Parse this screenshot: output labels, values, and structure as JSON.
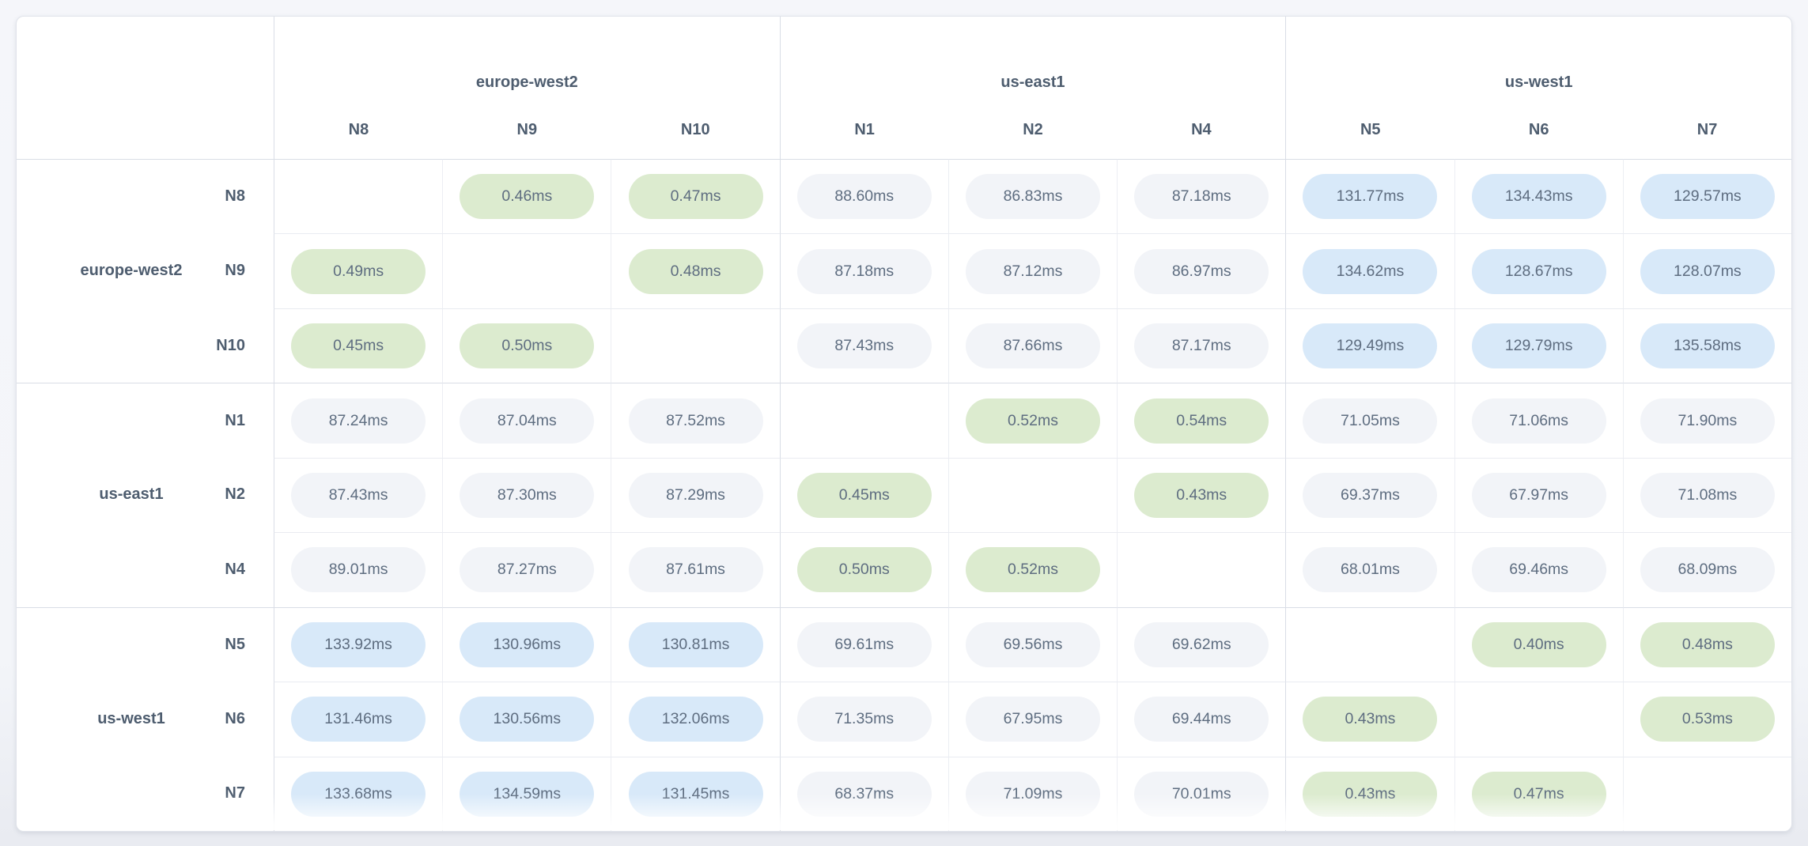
{
  "chart_data": {
    "type": "heatmap",
    "unit": "ms",
    "col_groups": [
      {
        "region": "europe-west2",
        "nodes": [
          "N8",
          "N9",
          "N10"
        ]
      },
      {
        "region": "us-east1",
        "nodes": [
          "N1",
          "N2",
          "N4"
        ]
      },
      {
        "region": "us-west1",
        "nodes": [
          "N5",
          "N6",
          "N7"
        ]
      }
    ],
    "row_groups": [
      {
        "region": "europe-west2",
        "nodes": [
          "N8",
          "N9",
          "N10"
        ]
      },
      {
        "region": "us-east1",
        "nodes": [
          "N1",
          "N2",
          "N4"
        ]
      },
      {
        "region": "us-west1",
        "nodes": [
          "N5",
          "N6",
          "N7"
        ]
      }
    ],
    "rows": [
      {
        "node": "N8",
        "region": "europe-west2",
        "values": [
          null,
          0.46,
          0.47,
          88.6,
          86.83,
          87.18,
          131.77,
          134.43,
          129.57
        ]
      },
      {
        "node": "N9",
        "region": "europe-west2",
        "values": [
          0.49,
          null,
          0.48,
          87.18,
          87.12,
          86.97,
          134.62,
          128.67,
          128.07
        ]
      },
      {
        "node": "N10",
        "region": "europe-west2",
        "values": [
          0.45,
          0.5,
          null,
          87.43,
          87.66,
          87.17,
          129.49,
          129.79,
          135.58
        ]
      },
      {
        "node": "N1",
        "region": "us-east1",
        "values": [
          87.24,
          87.04,
          87.52,
          null,
          0.52,
          0.54,
          71.05,
          71.06,
          71.9
        ]
      },
      {
        "node": "N2",
        "region": "us-east1",
        "values": [
          87.43,
          87.3,
          87.29,
          0.45,
          null,
          0.43,
          69.37,
          67.97,
          71.08
        ]
      },
      {
        "node": "N4",
        "region": "us-east1",
        "values": [
          89.01,
          87.27,
          87.61,
          0.5,
          0.52,
          null,
          68.01,
          69.46,
          68.09
        ]
      },
      {
        "node": "N5",
        "region": "us-west1",
        "values": [
          133.92,
          130.96,
          130.81,
          69.61,
          69.56,
          69.62,
          null,
          0.4,
          0.48
        ]
      },
      {
        "node": "N6",
        "region": "us-west1",
        "values": [
          131.46,
          130.56,
          132.06,
          71.35,
          67.95,
          69.44,
          0.43,
          null,
          0.53
        ]
      },
      {
        "node": "N7",
        "region": "us-west1",
        "values": [
          133.68,
          134.59,
          131.45,
          68.37,
          71.09,
          70.01,
          0.43,
          0.47,
          null
        ]
      }
    ],
    "value_decimals": 2,
    "thresholds": {
      "green_below": 1,
      "blue_at_or_above": 100
    },
    "layout": {
      "legend": "none",
      "grid": "on",
      "diagonal": "empty"
    }
  },
  "colors": {
    "pill_green": "#dcebcf",
    "pill_gray": "#f2f4f8",
    "pill_blue": "#d8e9f9",
    "pill_text": "#5e6d80",
    "label_text": "#4e5d6f",
    "separator_strong": "#d9dde6",
    "separator_light": "#eceef3",
    "card_bg": "#ffffff"
  }
}
